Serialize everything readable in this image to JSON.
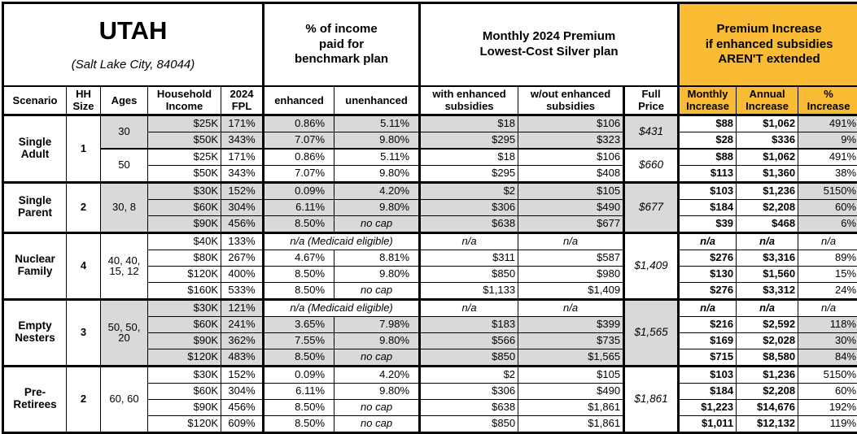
{
  "colors": {
    "accent_orange": "#F8BB33",
    "shade_gray": "#D9D9D9",
    "border": "#000000"
  },
  "header": {
    "region": "UTAH",
    "subtitle": "(Salt Lake City, 84044)",
    "col_groups": {
      "benchmark": "% of income\npaid for\nbenchmark plan",
      "premium": "Monthly 2024 Premium\nLowest-Cost Silver plan",
      "increase": "Premium Increase\nif enhanced subsidies\nAREN'T extended"
    },
    "columns": [
      "Scenario",
      "HH\nSize",
      "Ages",
      "Household\nIncome",
      "2024\nFPL",
      "enhanced",
      "unenhanced",
      "with enhanced\nsubsidies",
      "w/out enhanced\nsubsidies",
      "Full\nPrice",
      "Monthly\nIncrease",
      "Annual\nIncrease",
      "%\nIncrease"
    ]
  },
  "groups": [
    {
      "scenario": "Single Adult",
      "hh_size": "1",
      "age_blocks": [
        {
          "ages": "30",
          "span": 2,
          "shaded": true
        },
        {
          "ages": "50",
          "span": 2,
          "shaded": false
        }
      ],
      "price_blocks": [
        {
          "value": "$431",
          "span": 2,
          "shaded": true
        },
        {
          "value": "$660",
          "span": 2,
          "shaded": false
        }
      ],
      "rows": [
        {
          "income": "$25K",
          "fpl": "171%",
          "enhanced": "0.86%",
          "unenhanced": "5.11%",
          "with_sub": "$18",
          "wout_sub": "$106",
          "monthly": "$88",
          "annual": "$1,062",
          "pct": "491%",
          "shaded": true
        },
        {
          "income": "$50K",
          "fpl": "343%",
          "enhanced": "7.07%",
          "unenhanced": "9.80%",
          "with_sub": "$295",
          "wout_sub": "$323",
          "monthly": "$28",
          "annual": "$336",
          "pct": "9%",
          "shaded": true
        },
        {
          "income": "$25K",
          "fpl": "171%",
          "enhanced": "0.86%",
          "unenhanced": "5.11%",
          "with_sub": "$18",
          "wout_sub": "$106",
          "monthly": "$88",
          "annual": "$1,062",
          "pct": "491%",
          "shaded": false,
          "thick_top": true
        },
        {
          "income": "$50K",
          "fpl": "343%",
          "enhanced": "7.07%",
          "unenhanced": "9.80%",
          "with_sub": "$295",
          "wout_sub": "$408",
          "monthly": "$113",
          "annual": "$1,360",
          "pct": "38%",
          "shaded": false
        }
      ]
    },
    {
      "scenario": "Single Parent",
      "hh_size": "2",
      "age_blocks": [
        {
          "ages": "30, 8",
          "span": 3,
          "shaded": true
        }
      ],
      "price_blocks": [
        {
          "value": "$677",
          "span": 3,
          "shaded": true
        }
      ],
      "rows": [
        {
          "income": "$30K",
          "fpl": "152%",
          "enhanced": "0.09%",
          "unenhanced": "4.20%",
          "with_sub": "$2",
          "wout_sub": "$105",
          "monthly": "$103",
          "annual": "$1,236",
          "pct": "5150%",
          "shaded": true
        },
        {
          "income": "$60K",
          "fpl": "304%",
          "enhanced": "6.11%",
          "unenhanced": "9.80%",
          "with_sub": "$306",
          "wout_sub": "$490",
          "monthly": "$184",
          "annual": "$2,208",
          "pct": "60%",
          "shaded": true
        },
        {
          "income": "$90K",
          "fpl": "456%",
          "enhanced": "8.50%",
          "unenhanced": "no cap",
          "with_sub": "$638",
          "wout_sub": "$677",
          "monthly": "$39",
          "annual": "$468",
          "pct": "6%",
          "shaded": true
        }
      ]
    },
    {
      "scenario": "Nuclear Family",
      "hh_size": "4",
      "age_blocks": [
        {
          "ages": "40, 40, 15, 12",
          "span": 4,
          "shaded": false
        }
      ],
      "price_blocks": [
        {
          "value": "$1,409",
          "span": 4,
          "shaded": false
        }
      ],
      "rows": [
        {
          "income": "$40K",
          "fpl": "133%",
          "medicaid": "n/a (Medicaid eligible)",
          "with_sub": "n/a",
          "wout_sub": "n/a",
          "monthly": "n/a",
          "annual": "n/a",
          "pct": "n/a",
          "shaded": false
        },
        {
          "income": "$80K",
          "fpl": "267%",
          "enhanced": "4.67%",
          "unenhanced": "8.81%",
          "with_sub": "$311",
          "wout_sub": "$587",
          "monthly": "$276",
          "annual": "$3,316",
          "pct": "89%",
          "shaded": false
        },
        {
          "income": "$120K",
          "fpl": "400%",
          "enhanced": "8.50%",
          "unenhanced": "9.80%",
          "with_sub": "$850",
          "wout_sub": "$980",
          "monthly": "$130",
          "annual": "$1,560",
          "pct": "15%",
          "shaded": false
        },
        {
          "income": "$160K",
          "fpl": "533%",
          "enhanced": "8.50%",
          "unenhanced": "no cap",
          "with_sub": "$1,133",
          "wout_sub": "$1,409",
          "monthly": "$276",
          "annual": "$3,312",
          "pct": "24%",
          "shaded": false
        }
      ]
    },
    {
      "scenario": "Empty Nesters",
      "hh_size": "3",
      "age_blocks": [
        {
          "ages": "50, 50, 20",
          "span": 4,
          "shaded": true
        }
      ],
      "price_blocks": [
        {
          "value": "$1,565",
          "span": 4,
          "shaded": true
        }
      ],
      "rows": [
        {
          "income": "$30K",
          "fpl": "121%",
          "medicaid": "n/a (Medicaid eligible)",
          "with_sub": "n/a",
          "wout_sub": "n/a",
          "monthly": "n/a",
          "annual": "n/a",
          "pct": "n/a",
          "shaded": true
        },
        {
          "income": "$60K",
          "fpl": "241%",
          "enhanced": "3.65%",
          "unenhanced": "7.98%",
          "with_sub": "$183",
          "wout_sub": "$399",
          "monthly": "$216",
          "annual": "$2,592",
          "pct": "118%",
          "shaded": true
        },
        {
          "income": "$90K",
          "fpl": "362%",
          "enhanced": "7.55%",
          "unenhanced": "9.80%",
          "with_sub": "$566",
          "wout_sub": "$735",
          "monthly": "$169",
          "annual": "$2,028",
          "pct": "30%",
          "shaded": true
        },
        {
          "income": "$120K",
          "fpl": "483%",
          "enhanced": "8.50%",
          "unenhanced": "no cap",
          "with_sub": "$850",
          "wout_sub": "$1,565",
          "monthly": "$715",
          "annual": "$8,580",
          "pct": "84%",
          "shaded": true
        }
      ]
    },
    {
      "scenario": "Pre-Retirees",
      "hh_size": "2",
      "age_blocks": [
        {
          "ages": "60, 60",
          "span": 4,
          "shaded": false
        }
      ],
      "price_blocks": [
        {
          "value": "$1,861",
          "span": 4,
          "shaded": false
        }
      ],
      "rows": [
        {
          "income": "$30K",
          "fpl": "152%",
          "enhanced": "0.09%",
          "unenhanced": "4.20%",
          "with_sub": "$2",
          "wout_sub": "$105",
          "monthly": "$103",
          "annual": "$1,236",
          "pct": "5150%",
          "shaded": false
        },
        {
          "income": "$60K",
          "fpl": "304%",
          "enhanced": "6.11%",
          "unenhanced": "9.80%",
          "with_sub": "$306",
          "wout_sub": "$490",
          "monthly": "$184",
          "annual": "$2,208",
          "pct": "60%",
          "shaded": false
        },
        {
          "income": "$90K",
          "fpl": "456%",
          "enhanced": "8.50%",
          "unenhanced": "no cap",
          "with_sub": "$638",
          "wout_sub": "$1,861",
          "monthly": "$1,223",
          "annual": "$14,676",
          "pct": "192%",
          "shaded": false
        },
        {
          "income": "$120K",
          "fpl": "609%",
          "enhanced": "8.50%",
          "unenhanced": "no cap",
          "with_sub": "$850",
          "wout_sub": "$1,861",
          "monthly": "$1,011",
          "annual": "$12,132",
          "pct": "119%",
          "shaded": false
        }
      ]
    }
  ]
}
